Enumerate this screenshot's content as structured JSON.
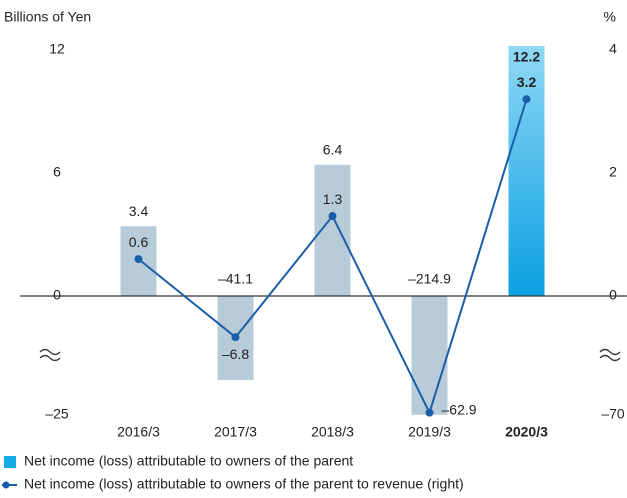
{
  "chart_data": {
    "type": "bar",
    "y_label": "Billions of Yen",
    "y2_label": "%",
    "categories": [
      "2016/3",
      "2017/3",
      "2018/3",
      "2019/3",
      "2020/3"
    ],
    "highlight_index": 4,
    "series": [
      {
        "name": "Net income (loss) attributable to owners of the parent",
        "type": "bar",
        "color": "#b7cbd9",
        "highlight_color": "#14aae6",
        "values": [
          3.4,
          -41.1,
          6.4,
          -214.9,
          12.2
        ],
        "value_labels": [
          "3.4",
          "–41.1",
          "6.4",
          "–214.9",
          "12.2"
        ]
      },
      {
        "name": "Net income (loss) attributable to owners of the parent to revenue (right)",
        "type": "line",
        "axis": "y2",
        "color": "#1a5ea8",
        "values": [
          0.6,
          -6.8,
          1.3,
          -62.9,
          3.2
        ],
        "value_labels": [
          "0.6",
          "–6.8",
          "1.3",
          "–62.9",
          "3.2"
        ]
      }
    ],
    "ylim": [
      -25,
      12
    ],
    "yticks": [
      {
        "value": -25,
        "label": "–25"
      },
      0,
      6,
      12
    ],
    "y2lim": [
      -70,
      4
    ],
    "y2ticks": [
      {
        "value": -70,
        "label": "–70"
      },
      0,
      2,
      4
    ]
  }
}
